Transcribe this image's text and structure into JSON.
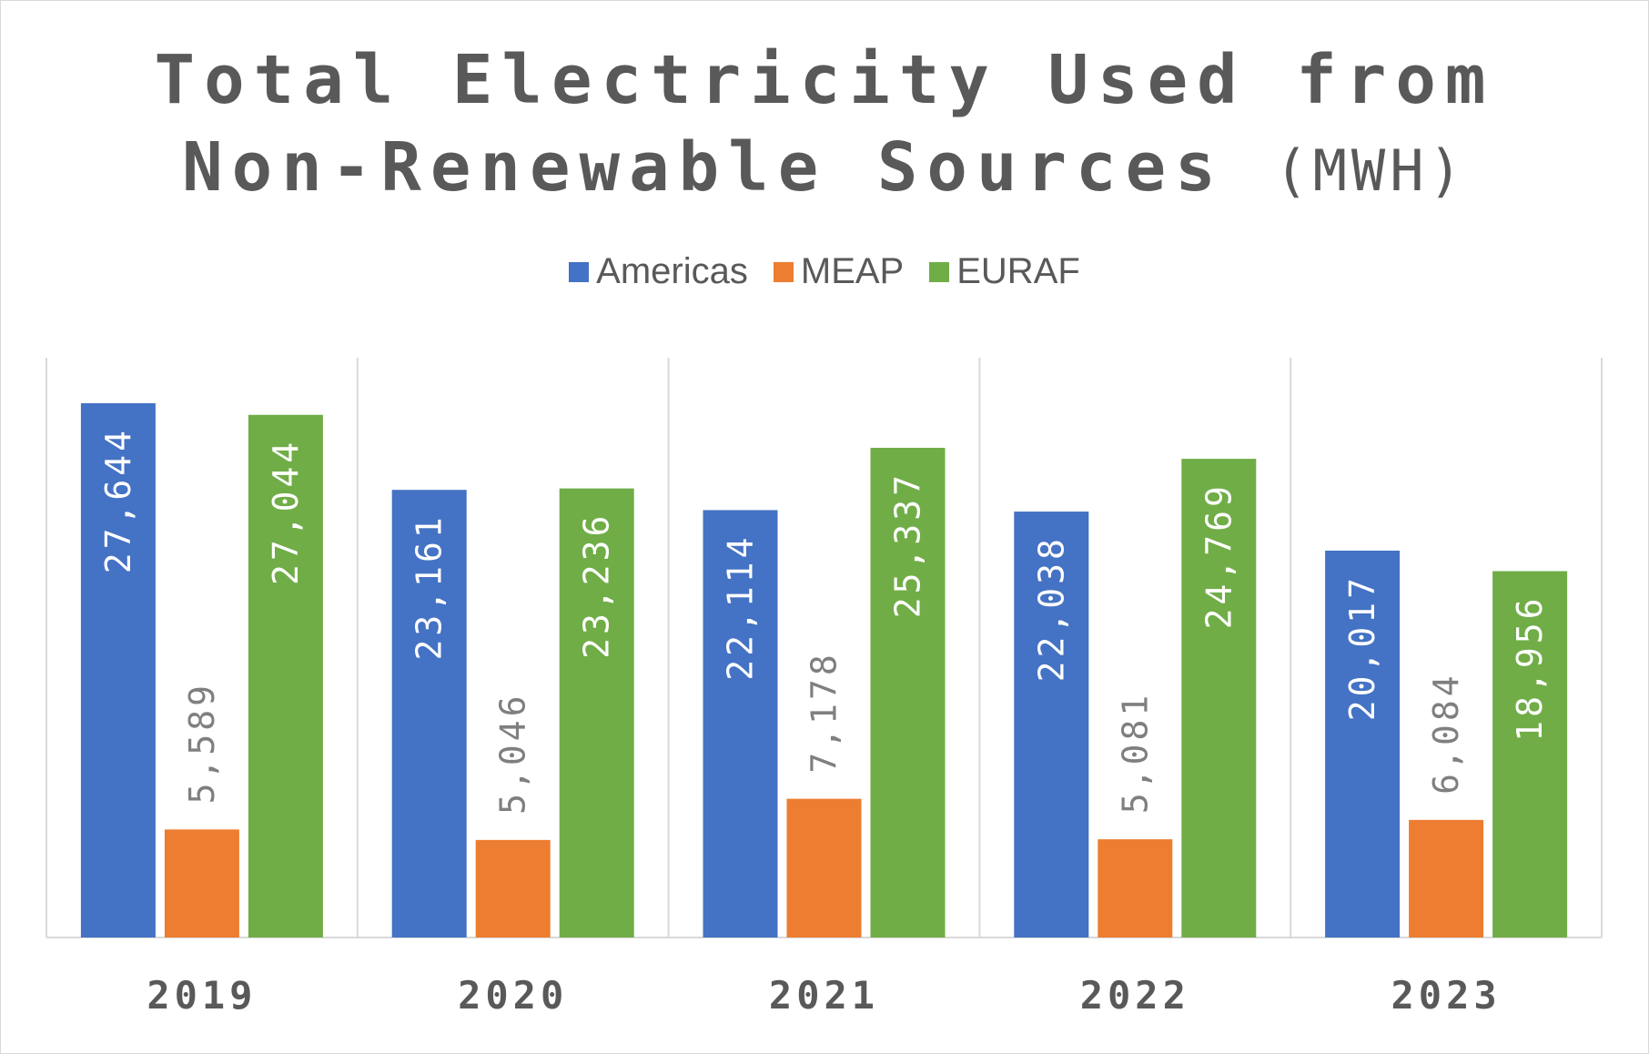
{
  "chart_data": {
    "type": "bar",
    "title": "Total Electricity Used from Non-Renewable Sources",
    "title_unit": "(MWH)",
    "categories": [
      "2019",
      "2020",
      "2021",
      "2022",
      "2023"
    ],
    "series": [
      {
        "name": "Americas",
        "color": "#4472c4",
        "label_color": "#ffffff",
        "values": [
          27644,
          23161,
          22114,
          22038,
          20017
        ],
        "labels": [
          "27,644",
          "23,161",
          "22,114",
          "22,038",
          "20,017"
        ]
      },
      {
        "name": "MEAP",
        "color": "#ed7d31",
        "label_color": "#7f7f7f",
        "values": [
          5589,
          5046,
          7178,
          5081,
          6084
        ],
        "labels": [
          "5,589",
          "5,046",
          "7,178",
          "5,081",
          "6,084"
        ]
      },
      {
        "name": "EURAF",
        "color": "#70ad47",
        "label_color": "#ffffff",
        "values": [
          27044,
          23236,
          25337,
          24769,
          18956
        ],
        "labels": [
          "27,044",
          "23,236",
          "25,337",
          "24,769",
          "18,956"
        ]
      }
    ],
    "ylim": [
      0,
      30000
    ],
    "grid": "vertical category separators",
    "legend_position": "top"
  }
}
